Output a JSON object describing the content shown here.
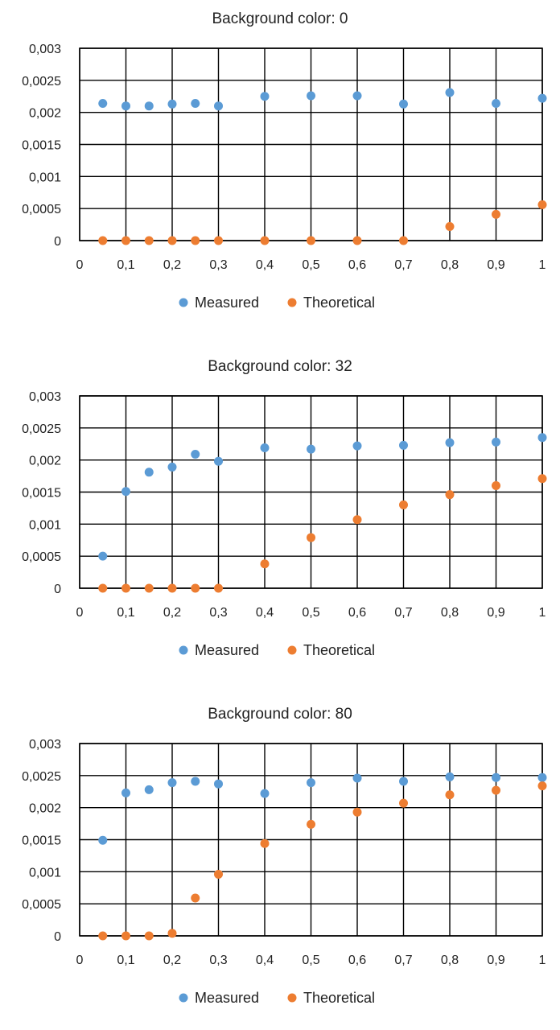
{
  "chart_data": [
    {
      "type": "scatter",
      "title": "Background color: 0",
      "x_ticks": [
        "0",
        "0,1",
        "0,2",
        "0,3",
        "0,4",
        "0,5",
        "0,6",
        "0,7",
        "0,8",
        "0,9",
        "1"
      ],
      "y_ticks": [
        "0",
        "0,0005",
        "0,001",
        "0,0015",
        "0,002",
        "0,0025",
        "0,003"
      ],
      "xlim": [
        0,
        1
      ],
      "ylim": [
        0,
        0.003
      ],
      "grid": true,
      "legend_position": "bottom",
      "x": [
        0.05,
        0.1,
        0.15,
        0.2,
        0.25,
        0.3,
        0.4,
        0.5,
        0.6,
        0.7,
        0.8,
        0.9,
        1.0
      ],
      "series": [
        {
          "name": "Measured",
          "color": "#5B9BD5",
          "values": [
            0.00214,
            0.0021,
            0.0021,
            0.00213,
            0.00214,
            0.0021,
            0.00225,
            0.00226,
            0.00226,
            0.00213,
            0.00231,
            0.00214,
            0.00222
          ]
        },
        {
          "name": "Theoretical",
          "color": "#ED7D31",
          "values": [
            0,
            0,
            0,
            0,
            0,
            0,
            0,
            0,
            0,
            0,
            0.00022,
            0.00041,
            0.00056
          ]
        }
      ]
    },
    {
      "type": "scatter",
      "title": "Background color: 32",
      "x_ticks": [
        "0",
        "0,1",
        "0,2",
        "0,3",
        "0,4",
        "0,5",
        "0,6",
        "0,7",
        "0,8",
        "0,9",
        "1"
      ],
      "y_ticks": [
        "0",
        "0,0005",
        "0,001",
        "0,0015",
        "0,002",
        "0,0025",
        "0,003"
      ],
      "xlim": [
        0,
        1
      ],
      "ylim": [
        0,
        0.003
      ],
      "grid": true,
      "legend_position": "bottom",
      "x": [
        0.05,
        0.1,
        0.15,
        0.2,
        0.25,
        0.3,
        0.4,
        0.5,
        0.6,
        0.7,
        0.8,
        0.9,
        1.0
      ],
      "series": [
        {
          "name": "Measured",
          "color": "#5B9BD5",
          "values": [
            0.0005,
            0.00151,
            0.00181,
            0.00189,
            0.00209,
            0.00198,
            0.00219,
            0.00217,
            0.00222,
            0.00223,
            0.00227,
            0.00228,
            0.00235
          ]
        },
        {
          "name": "Theoretical",
          "color": "#ED7D31",
          "values": [
            0,
            0,
            0,
            0,
            0,
            0,
            0.00038,
            0.00079,
            0.00107,
            0.0013,
            0.00146,
            0.0016,
            0.00171
          ]
        }
      ]
    },
    {
      "type": "scatter",
      "title": "Background color: 80",
      "x_ticks": [
        "0",
        "0,1",
        "0,2",
        "0,3",
        "0,4",
        "0,5",
        "0,6",
        "0,7",
        "0,8",
        "0,9",
        "1"
      ],
      "y_ticks": [
        "0",
        "0,0005",
        "0,001",
        "0,0015",
        "0,002",
        "0,0025",
        "0,003"
      ],
      "xlim": [
        0,
        1
      ],
      "ylim": [
        0,
        0.003
      ],
      "grid": true,
      "legend_position": "bottom",
      "x": [
        0.05,
        0.1,
        0.15,
        0.2,
        0.25,
        0.3,
        0.4,
        0.5,
        0.6,
        0.7,
        0.8,
        0.9,
        1.0
      ],
      "series": [
        {
          "name": "Measured",
          "color": "#5B9BD5",
          "values": [
            0.00149,
            0.00223,
            0.00228,
            0.00239,
            0.00241,
            0.00237,
            0.00222,
            0.00239,
            0.00246,
            0.00241,
            0.00248,
            0.00247,
            0.00247
          ]
        },
        {
          "name": "Theoretical",
          "color": "#ED7D31",
          "values": [
            0,
            0,
            0,
            4e-05,
            0.00059,
            0.00096,
            0.00144,
            0.00174,
            0.00193,
            0.00207,
            0.0022,
            0.00227,
            0.00234
          ]
        }
      ]
    }
  ]
}
